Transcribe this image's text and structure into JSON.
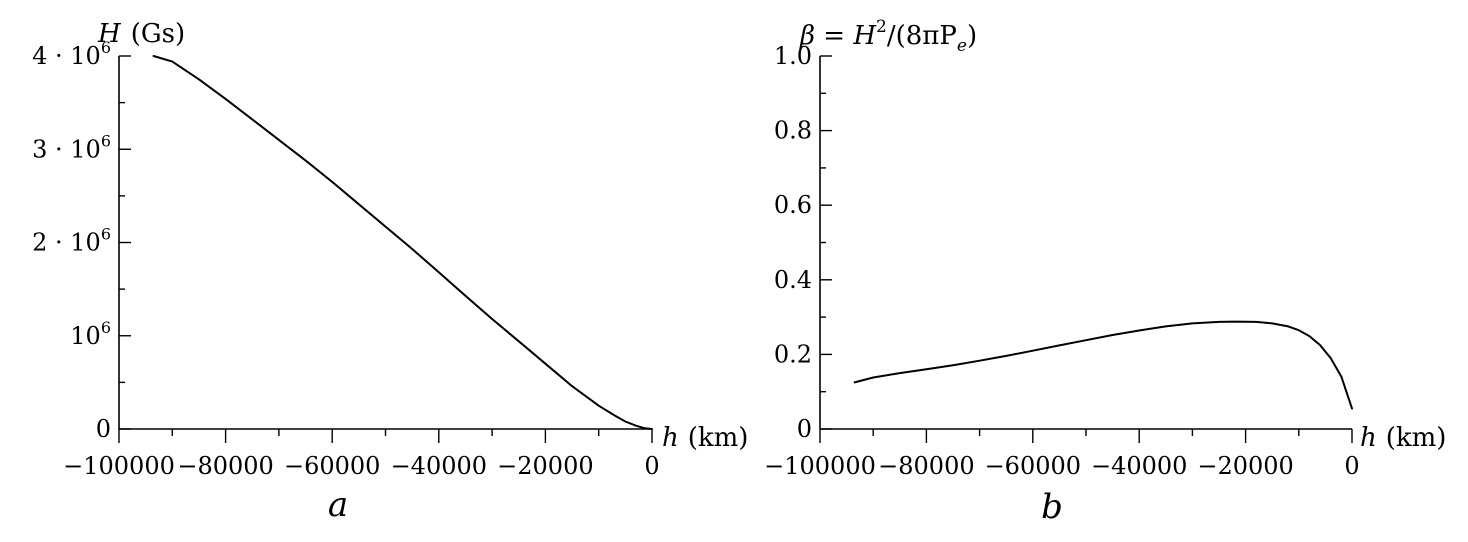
{
  "chart_data": [
    {
      "type": "line",
      "panel_label": "a",
      "ylabel_var": "H",
      "ylabel_unit": "(Gs)",
      "xlabel_var": "h",
      "xlabel_unit": "(km)",
      "xlim": [
        -100000,
        0
      ],
      "ylim": [
        0,
        4000000
      ],
      "grid": false,
      "x_ticks": [
        {
          "value": -100000,
          "label": "−100000"
        },
        {
          "value": -80000,
          "label": "−80000"
        },
        {
          "value": -60000,
          "label": "−60000"
        },
        {
          "value": -40000,
          "label": "−40000"
        },
        {
          "value": -20000,
          "label": "−20000"
        },
        {
          "value": 0,
          "label": "0"
        }
      ],
      "x_minor_step": 10000,
      "y_ticks": [
        {
          "value": 0,
          "label": "0"
        },
        {
          "value": 1000000,
          "label": "10",
          "sup": "6"
        },
        {
          "value": 2000000,
          "label": "2 · 10",
          "sup": "6"
        },
        {
          "value": 3000000,
          "label": "3 · 10",
          "sup": "6"
        },
        {
          "value": 4000000,
          "label": "4 · 10",
          "sup": "6"
        }
      ],
      "y_minor_step": 500000,
      "series": [
        {
          "x": [
            -93500,
            -90000,
            -85000,
            -80000,
            -75000,
            -70000,
            -65000,
            -60000,
            -55000,
            -50000,
            -45000,
            -40000,
            -35000,
            -30000,
            -25000,
            -20000,
            -15000,
            -10000,
            -7000,
            -5000,
            -3000,
            -1500,
            0
          ],
          "y": [
            4000000,
            3940000,
            3750000,
            3540000,
            3320000,
            3100000,
            2880000,
            2650000,
            2410000,
            2170000,
            1930000,
            1680000,
            1430000,
            1180000,
            940000,
            700000,
            460000,
            250000,
            145000,
            80000,
            35000,
            10000,
            0
          ]
        }
      ]
    },
    {
      "type": "line",
      "panel_label": "b",
      "ylabel_prefix": "β = H",
      "ylabel_sup": "2",
      "ylabel_mid": "/(8πP",
      "ylabel_sub": "e",
      "ylabel_end": ")",
      "xlabel_var": "h",
      "xlabel_unit": "(km)",
      "xlim": [
        -100000,
        0
      ],
      "ylim": [
        0,
        1.0
      ],
      "grid": false,
      "x_ticks": [
        {
          "value": -100000,
          "label": "−100000"
        },
        {
          "value": -80000,
          "label": "−80000"
        },
        {
          "value": -60000,
          "label": "−60000"
        },
        {
          "value": -40000,
          "label": "−40000"
        },
        {
          "value": -20000,
          "label": "−20000"
        },
        {
          "value": 0,
          "label": "0"
        }
      ],
      "x_minor_step": 10000,
      "y_ticks": [
        {
          "value": 0,
          "label": "0"
        },
        {
          "value": 0.2,
          "label": "0.2"
        },
        {
          "value": 0.4,
          "label": "0.4"
        },
        {
          "value": 0.6,
          "label": "0.6"
        },
        {
          "value": 0.8,
          "label": "0.8"
        },
        {
          "value": 1.0,
          "label": "1.0"
        }
      ],
      "y_minor_step": 0.1,
      "series": [
        {
          "x": [
            -93500,
            -90000,
            -85000,
            -80000,
            -75000,
            -70000,
            -65000,
            -60000,
            -55000,
            -50000,
            -45000,
            -40000,
            -35000,
            -30000,
            -25000,
            -22000,
            -18000,
            -15000,
            -12000,
            -10000,
            -8000,
            -6000,
            -4000,
            -2000,
            0
          ],
          "y": [
            0.125,
            0.138,
            0.15,
            0.16,
            0.171,
            0.183,
            0.196,
            0.21,
            0.224,
            0.238,
            0.252,
            0.264,
            0.275,
            0.283,
            0.287,
            0.288,
            0.287,
            0.283,
            0.275,
            0.265,
            0.249,
            0.225,
            0.19,
            0.14,
            0.055
          ]
        }
      ]
    }
  ]
}
